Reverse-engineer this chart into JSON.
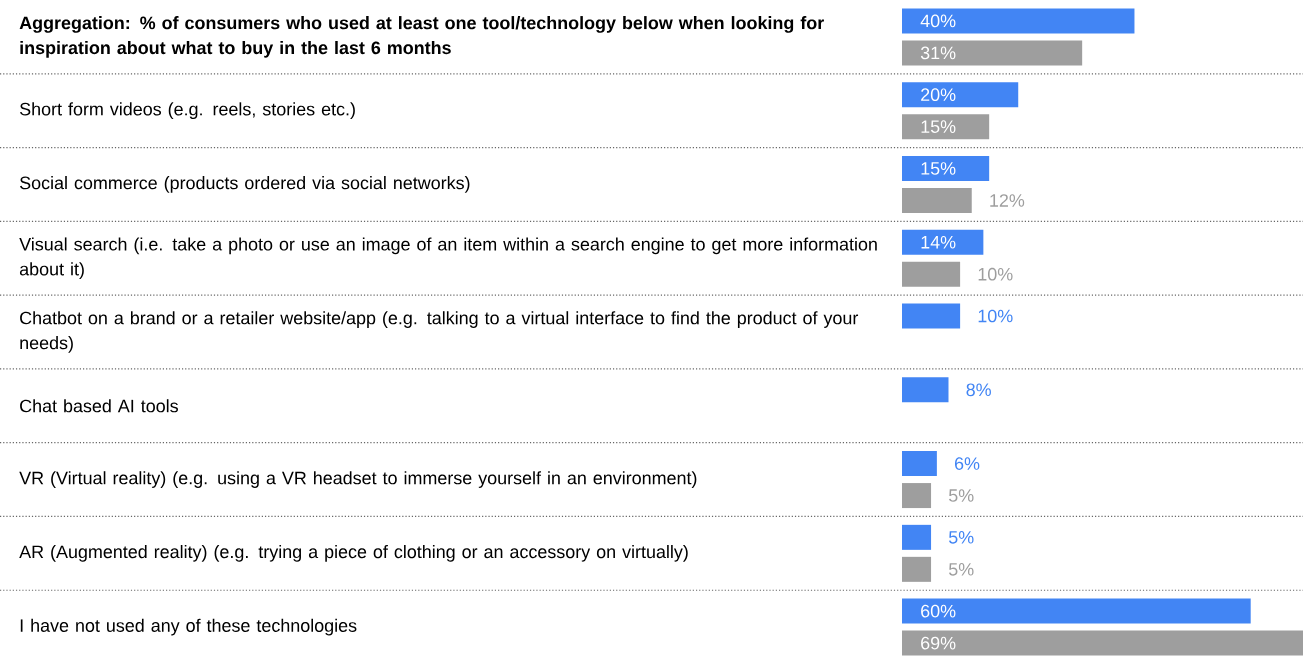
{
  "chart_data": {
    "type": "bar",
    "orientation": "horizontal",
    "categories": [
      "Aggregation: % of consumers who used at least one tool/technology below when looking for inspiration about what to buy in the last 6 months",
      "Short form videos (e.g. reels, stories etc.)",
      "Social commerce (products ordered via social networks)",
      "Visual search (i.e. take a photo or use an image of an item within a search engine to get more information about it)",
      "Chatbot on a brand or a retailer website/app (e.g. talking to a virtual interface to find the product of your needs)",
      "Chat based AI tools",
      "VR (Virtual reality) (e.g. using a VR headset to immerse yourself in an environment)",
      "AR (Augmented reality) (e.g. trying a piece of clothing or an accessory on virtually)",
      "I have not used any of these technologies"
    ],
    "series": [
      {
        "color": "#4285f4",
        "values": [
          40,
          20,
          15,
          14,
          10,
          8,
          6,
          5,
          60
        ],
        "value_labels": [
          "40%",
          "20%",
          "15%",
          "14%",
          "10%",
          "8%",
          "6%",
          "5%",
          "60%"
        ]
      },
      {
        "color": "#9e9e9e",
        "values": [
          31,
          15,
          12,
          10,
          null,
          null,
          5,
          5,
          69
        ],
        "value_labels": [
          "31%",
          "15%",
          "12%",
          "10%",
          null,
          null,
          "5%",
          "5%",
          "69%"
        ]
      }
    ]
  }
}
